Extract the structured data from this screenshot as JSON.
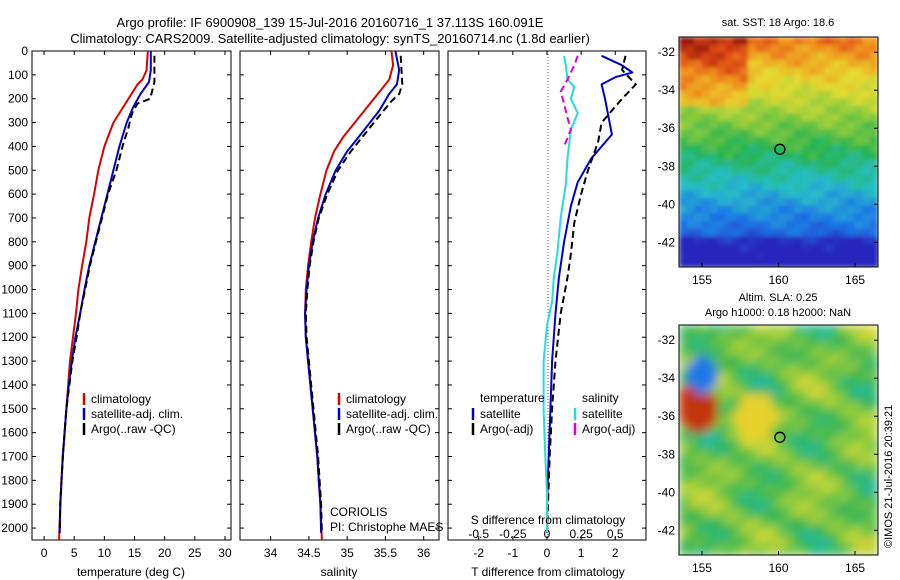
{
  "figure": {
    "title_line1": "Argo profile: IF 6900908_139 15-Jul-2016 20160716_1 37.113S 160.091E",
    "title_line2": "Climatology: CARS2009. Satellite-adjusted climatology: synTS_20160714.nc (1.8d earlier)",
    "timestamp": "©IMOS 21-Jul-2016 20:39:21",
    "coriolis": "CORIOLIS",
    "pi": "PI: Christophe MAES"
  },
  "colors": {
    "climatology": "#dd0000",
    "satellite": "#0000cc",
    "argo": "#000000",
    "salinity_satellite": "#22dddd",
    "salinity_argo": "#dd00dd"
  },
  "chart_data": [
    {
      "type": "line",
      "xlabel": "temperature (deg C)",
      "ylabel": "",
      "xlim": [
        -2,
        31
      ],
      "ylim": [
        2050,
        0
      ],
      "xticks": [
        0,
        5,
        10,
        15,
        20,
        25,
        30
      ],
      "yticks": [
        0,
        100,
        200,
        300,
        400,
        500,
        600,
        700,
        800,
        900,
        1000,
        1100,
        1200,
        1300,
        1400,
        1500,
        1600,
        1700,
        1800,
        1900,
        2000
      ],
      "legend": {
        "placement": "lower-center"
      },
      "series": [
        {
          "name": "climatology",
          "style": "solid",
          "color": "#dd0000",
          "points": [
            [
              17.2,
              0
            ],
            [
              17,
              80
            ],
            [
              16.3,
              120
            ],
            [
              15.5,
              140
            ],
            [
              13.5,
              220
            ],
            [
              11.5,
              300
            ],
            [
              10,
              400
            ],
            [
              9,
              500
            ],
            [
              8.3,
              600
            ],
            [
              7.5,
              700
            ],
            [
              7,
              800
            ],
            [
              6.3,
              900
            ],
            [
              5.7,
              1000
            ],
            [
              5.3,
              1100
            ],
            [
              4.8,
              1200
            ],
            [
              4.3,
              1300
            ],
            [
              4,
              1400
            ],
            [
              3.7,
              1500
            ],
            [
              3.4,
              1600
            ],
            [
              3.1,
              1700
            ],
            [
              2.9,
              1800
            ],
            [
              2.7,
              1900
            ],
            [
              2.5,
              2050
            ]
          ]
        },
        {
          "name": "satellite-adj. clim.",
          "style": "solid",
          "color": "#0000cc",
          "points": [
            [
              17.7,
              0
            ],
            [
              17.7,
              80
            ],
            [
              17.4,
              130
            ],
            [
              16,
              180
            ],
            [
              14.7,
              240
            ],
            [
              13.7,
              300
            ],
            [
              12.5,
              400
            ],
            [
              11.5,
              500
            ],
            [
              10.5,
              600
            ],
            [
              9.5,
              700
            ],
            [
              8.5,
              800
            ],
            [
              7.5,
              900
            ],
            [
              6.7,
              1000
            ],
            [
              6,
              1100
            ],
            [
              5.2,
              1200
            ],
            [
              4.6,
              1300
            ],
            [
              4.1,
              1400
            ],
            [
              3.7,
              1500
            ],
            [
              3.4,
              1600
            ],
            [
              3.1,
              1700
            ],
            [
              2.9,
              1800
            ],
            [
              2.7,
              1900
            ],
            [
              2.6,
              2020
            ]
          ]
        },
        {
          "name": "Argo(..raw -QC)",
          "style": "dash",
          "color": "#000000",
          "points": [
            [
              18.3,
              20
            ],
            [
              18.3,
              130
            ],
            [
              17.6,
              200
            ],
            [
              15.5,
              220
            ],
            [
              14.6,
              260
            ],
            [
              14,
              320
            ],
            [
              13,
              400
            ],
            [
              12,
              500
            ],
            [
              10.6,
              600
            ],
            [
              9.6,
              700
            ],
            [
              8.6,
              800
            ],
            [
              7.6,
              900
            ],
            [
              6.8,
              1000
            ],
            [
              6,
              1100
            ],
            [
              5.4,
              1200
            ],
            [
              4.7,
              1300
            ],
            [
              4.2,
              1400
            ],
            [
              3.7,
              1500
            ],
            [
              3.4,
              1600
            ],
            [
              3.1,
              1700
            ],
            [
              2.9,
              1800
            ],
            [
              2.7,
              1900
            ],
            [
              2.6,
              2020
            ]
          ]
        }
      ]
    },
    {
      "type": "line",
      "xlabel": "salinity",
      "ylabel": "",
      "xlim": [
        33.6,
        36.2
      ],
      "ylim": [
        2050,
        0
      ],
      "xticks": [
        34,
        34.5,
        35,
        35.5,
        36
      ],
      "legend": {
        "placement": "lower-center"
      },
      "series": [
        {
          "name": "climatology",
          "style": "solid",
          "color": "#dd0000",
          "points": [
            [
              35.58,
              0
            ],
            [
              35.6,
              60
            ],
            [
              35.55,
              120
            ],
            [
              35.45,
              160
            ],
            [
              35.3,
              220
            ],
            [
              35.1,
              300
            ],
            [
              34.95,
              360
            ],
            [
              34.83,
              420
            ],
            [
              34.73,
              500
            ],
            [
              34.65,
              600
            ],
            [
              34.58,
              700
            ],
            [
              34.53,
              800
            ],
            [
              34.49,
              900
            ],
            [
              34.46,
              1000
            ],
            [
              34.45,
              1100
            ],
            [
              34.46,
              1200
            ],
            [
              34.49,
              1300
            ],
            [
              34.52,
              1400
            ],
            [
              34.55,
              1500
            ],
            [
              34.58,
              1600
            ],
            [
              34.61,
              1700
            ],
            [
              34.63,
              1800
            ],
            [
              34.65,
              1900
            ],
            [
              34.67,
              2050
            ]
          ]
        },
        {
          "name": "satellite-adj. clim.",
          "style": "solid",
          "color": "#0000cc",
          "points": [
            [
              35.63,
              0
            ],
            [
              35.68,
              80
            ],
            [
              35.65,
              140
            ],
            [
              35.55,
              180
            ],
            [
              35.42,
              250
            ],
            [
              35.2,
              340
            ],
            [
              35.0,
              420
            ],
            [
              34.85,
              500
            ],
            [
              34.72,
              600
            ],
            [
              34.62,
              700
            ],
            [
              34.55,
              800
            ],
            [
              34.5,
              900
            ],
            [
              34.47,
              1000
            ],
            [
              34.45,
              1100
            ],
            [
              34.46,
              1200
            ],
            [
              34.49,
              1300
            ],
            [
              34.52,
              1400
            ],
            [
              34.55,
              1500
            ],
            [
              34.58,
              1600
            ],
            [
              34.61,
              1700
            ],
            [
              34.63,
              1800
            ],
            [
              34.65,
              1900
            ],
            [
              34.66,
              2020
            ]
          ]
        },
        {
          "name": "Argo(..raw -QC)",
          "style": "dash",
          "color": "#000000",
          "points": [
            [
              35.7,
              20
            ],
            [
              35.72,
              140
            ],
            [
              35.68,
              180
            ],
            [
              35.58,
              210
            ],
            [
              35.45,
              260
            ],
            [
              35.25,
              340
            ],
            [
              35.05,
              420
            ],
            [
              34.88,
              500
            ],
            [
              34.74,
              600
            ],
            [
              34.63,
              700
            ],
            [
              34.56,
              800
            ],
            [
              34.51,
              900
            ],
            [
              34.48,
              1000
            ],
            [
              34.46,
              1100
            ],
            [
              34.47,
              1200
            ],
            [
              34.5,
              1300
            ],
            [
              34.53,
              1400
            ],
            [
              34.56,
              1500
            ],
            [
              34.59,
              1600
            ],
            [
              34.62,
              1700
            ],
            [
              34.64,
              1800
            ],
            [
              34.66,
              1900
            ],
            [
              34.67,
              2020
            ]
          ]
        }
      ]
    },
    {
      "type": "line",
      "xlabel": "T difference from climatology",
      "x2label": "S difference from climatology",
      "xlim": [
        -2.9,
        2.9
      ],
      "ylim": [
        2050,
        0
      ],
      "xticks": [
        -2,
        -1,
        0,
        1,
        2
      ],
      "x2ticks": [
        "-0.5",
        "-0.25",
        "0",
        "0.25",
        "0.5"
      ],
      "legend": {
        "placement": "lower-center",
        "group_left": "temperature",
        "group_right": "salinity"
      },
      "series": [
        {
          "name": "satellite",
          "group": "temperature",
          "style": "solid",
          "color": "#0000cc",
          "points": [
            [
              1.6,
              20
            ],
            [
              2.2,
              60
            ],
            [
              2.5,
              90
            ],
            [
              2.0,
              110
            ],
            [
              1.6,
              140
            ],
            [
              1.7,
              200
            ],
            [
              1.9,
              350
            ],
            [
              1.3,
              450
            ],
            [
              0.9,
              550
            ],
            [
              0.7,
              650
            ],
            [
              0.5,
              800
            ],
            [
              0.35,
              950
            ],
            [
              0.25,
              1100
            ],
            [
              0.15,
              1300
            ],
            [
              0.1,
              1500
            ],
            [
              0.05,
              1700
            ],
            [
              0.0,
              1900
            ],
            [
              0.0,
              2020
            ]
          ]
        },
        {
          "name": "Argo(-adj)",
          "group": "temperature",
          "style": "dash",
          "color": "#000000",
          "points": [
            [
              2.3,
              20
            ],
            [
              2.2,
              80
            ],
            [
              2.6,
              140
            ],
            [
              2.2,
              200
            ],
            [
              1.6,
              300
            ],
            [
              1.5,
              380
            ],
            [
              1.2,
              500
            ],
            [
              1.0,
              600
            ],
            [
              0.8,
              720
            ],
            [
              0.7,
              850
            ],
            [
              0.6,
              950
            ],
            [
              0.4,
              1100
            ],
            [
              0.25,
              1300
            ],
            [
              0.15,
              1500
            ],
            [
              0.08,
              1700
            ],
            [
              0.03,
              1900
            ],
            [
              0.0,
              2020
            ]
          ]
        },
        {
          "name": "satellite",
          "group": "salinity",
          "style": "solid",
          "color": "#22dddd",
          "points": [
            [
              0.5,
              20
            ],
            [
              0.55,
              60
            ],
            [
              0.6,
              120
            ],
            [
              0.8,
              150
            ],
            [
              0.7,
              200
            ],
            [
              0.9,
              260
            ],
            [
              0.7,
              330
            ],
            [
              0.6,
              450
            ],
            [
              0.55,
              560
            ],
            [
              0.4,
              700
            ],
            [
              0.3,
              850
            ],
            [
              0.2,
              950
            ],
            [
              0.15,
              1050
            ],
            [
              0.0,
              1150
            ],
            [
              -0.1,
              1300
            ],
            [
              -0.1,
              1500
            ],
            [
              -0.05,
              1700
            ],
            [
              0.0,
              1850
            ],
            [
              0.0,
              2020
            ]
          ]
        },
        {
          "name": "Argo(-adj)",
          "group": "salinity",
          "style": "dash",
          "color": "#dd00dd",
          "points": [
            [
              0.9,
              20
            ],
            [
              0.8,
              60
            ],
            [
              0.6,
              120
            ],
            [
              0.4,
              170
            ],
            [
              0.5,
              220
            ],
            [
              0.6,
              280
            ],
            [
              0.7,
              330
            ],
            [
              0.5,
              400
            ]
          ]
        }
      ]
    },
    {
      "type": "heatmap",
      "title": "sat. SST: 18 Argo: 18.6",
      "xlim": [
        153.5,
        166.5
      ],
      "ylim": [
        -43.3,
        -31.2
      ],
      "xticks": [
        155,
        160,
        165
      ],
      "yticks": [
        -32,
        -34,
        -36,
        -38,
        -40,
        -42
      ],
      "marker": {
        "lon": 160.09,
        "lat": -37.11
      }
    },
    {
      "type": "heatmap",
      "title_line1": "Altim. SLA: 0.25",
      "title_line2": "Argo h1000: 0.18 h2000: NaN",
      "xlim": [
        153.5,
        166.5
      ],
      "ylim": [
        -43.3,
        -31.2
      ],
      "xticks": [
        155,
        160,
        165
      ],
      "yticks": [
        -32,
        -34,
        -36,
        -38,
        -40,
        -42
      ],
      "marker": {
        "lon": 160.09,
        "lat": -37.11
      }
    }
  ]
}
